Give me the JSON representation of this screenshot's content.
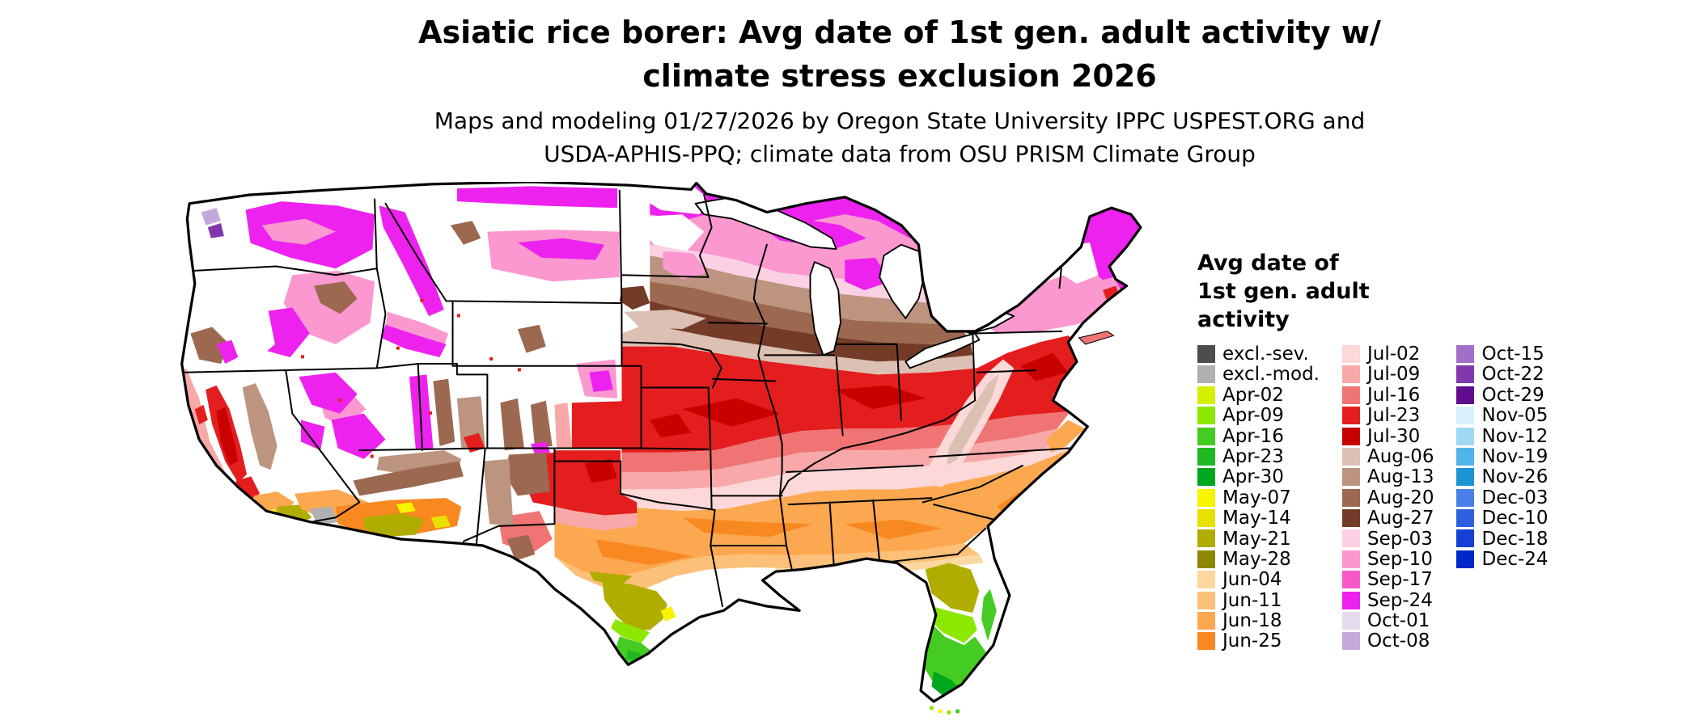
{
  "title": {
    "line1": "Asiatic rice borer: Avg date of 1st gen. adult activity w/",
    "line2": "climate stress exclusion 2026"
  },
  "subtitle": {
    "line1": "Maps and modeling 01/27/2026 by Oregon State University IPPC USPEST.ORG and",
    "line2": "USDA-APHIS-PPQ; climate data from OSU PRISM Climate Group"
  },
  "legend": {
    "title_lines": [
      "Avg date of",
      "1st gen. adult",
      "activity"
    ],
    "columns": [
      {
        "entries": [
          {
            "label": "excl.-sev.",
            "color": "#4d4d4d"
          },
          {
            "label": "excl.-mod.",
            "color": "#b0b0b0"
          },
          {
            "label": "Apr-02",
            "color": "#d4f000"
          },
          {
            "label": "Apr-09",
            "color": "#8ce800"
          },
          {
            "label": "Apr-16",
            "color": "#44cc22"
          },
          {
            "label": "Apr-23",
            "color": "#22b822"
          },
          {
            "label": "Apr-30",
            "color": "#00a81e"
          },
          {
            "label": "May-07",
            "color": "#f8f400"
          },
          {
            "label": "May-14",
            "color": "#e8e000"
          },
          {
            "label": "May-21",
            "color": "#b0ac00"
          },
          {
            "label": "May-28",
            "color": "#8c8800"
          },
          {
            "label": "Jun-04",
            "color": "#fcd8a0"
          },
          {
            "label": "Jun-11",
            "color": "#fcc078"
          },
          {
            "label": "Jun-18",
            "color": "#fca850"
          },
          {
            "label": "Jun-25",
            "color": "#f88820"
          }
        ]
      },
      {
        "entries": [
          {
            "label": "Jul-02",
            "color": "#fcd8d8"
          },
          {
            "label": "Jul-09",
            "color": "#f8a8a8"
          },
          {
            "label": "Jul-16",
            "color": "#f07474"
          },
          {
            "label": "Jul-23",
            "color": "#e41e1e"
          },
          {
            "label": "Jul-30",
            "color": "#c80000"
          },
          {
            "label": "Aug-06",
            "color": "#dcc0b4"
          },
          {
            "label": "Aug-13",
            "color": "#bc9480"
          },
          {
            "label": "Aug-20",
            "color": "#9c6850"
          },
          {
            "label": "Aug-27",
            "color": "#743c28"
          },
          {
            "label": "Sep-03",
            "color": "#fcd0e4"
          },
          {
            "label": "Sep-10",
            "color": "#fc98d0"
          },
          {
            "label": "Sep-17",
            "color": "#f858c8"
          },
          {
            "label": "Sep-24",
            "color": "#ee22ee"
          },
          {
            "label": "Oct-01",
            "color": "#e4dcec"
          },
          {
            "label": "Oct-08",
            "color": "#c4a8dc"
          }
        ]
      },
      {
        "entries": [
          {
            "label": "Oct-15",
            "color": "#a070c8"
          },
          {
            "label": "Oct-22",
            "color": "#8038ac"
          },
          {
            "label": "Oct-29",
            "color": "#600c8c"
          },
          {
            "label": "Nov-05",
            "color": "#d8f0fc"
          },
          {
            "label": "Nov-12",
            "color": "#a0d8f4"
          },
          {
            "label": "Nov-19",
            "color": "#50b4e8"
          },
          {
            "label": "Nov-26",
            "color": "#1c94d4"
          },
          {
            "label": "Dec-03",
            "color": "#4880e8"
          },
          {
            "label": "Dec-10",
            "color": "#2c60dc"
          },
          {
            "label": "Dec-18",
            "color": "#1440d4"
          },
          {
            "label": "Dec-24",
            "color": "#0028c8"
          }
        ]
      }
    ]
  }
}
